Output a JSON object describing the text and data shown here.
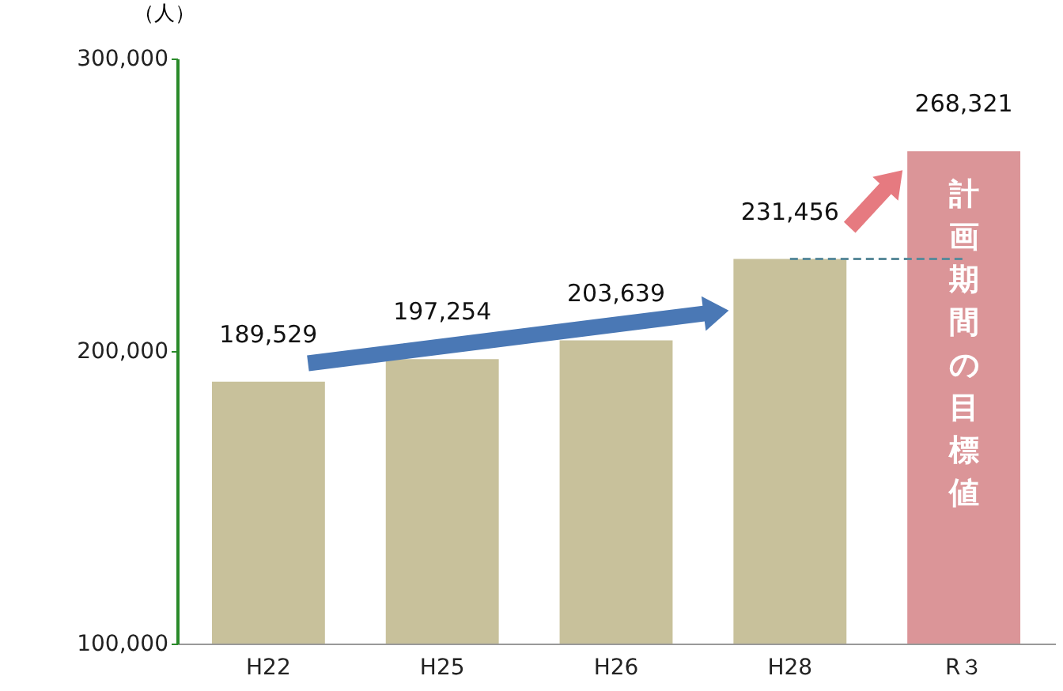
{
  "chart_data": {
    "type": "bar",
    "ylabel": "（人）",
    "categories": [
      "H22",
      "H25",
      "H26",
      "H28",
      "R３"
    ],
    "values": [
      189529,
      197254,
      203639,
      231456,
      268321
    ],
    "value_labels": [
      "189,529",
      "197,254",
      "203,639",
      "231,456",
      "268,321"
    ],
    "colors": [
      "#c8c19b",
      "#c8c19b",
      "#c8c19b",
      "#c8c19b",
      "#db9598"
    ],
    "ylim": [
      100000,
      300000
    ],
    "yticks": [
      {
        "value": 100000,
        "label": "100,000"
      },
      {
        "value": 200000,
        "label": "200,000"
      },
      {
        "value": 300000,
        "label": "300,000"
      }
    ],
    "grid": false,
    "ref_lines": [
      {
        "axis": "y",
        "value": 231456,
        "label": null,
        "color": "#5a8a9a",
        "line_style": "dashed"
      }
    ],
    "annotations": [
      "計画期間の目標値"
    ]
  }
}
